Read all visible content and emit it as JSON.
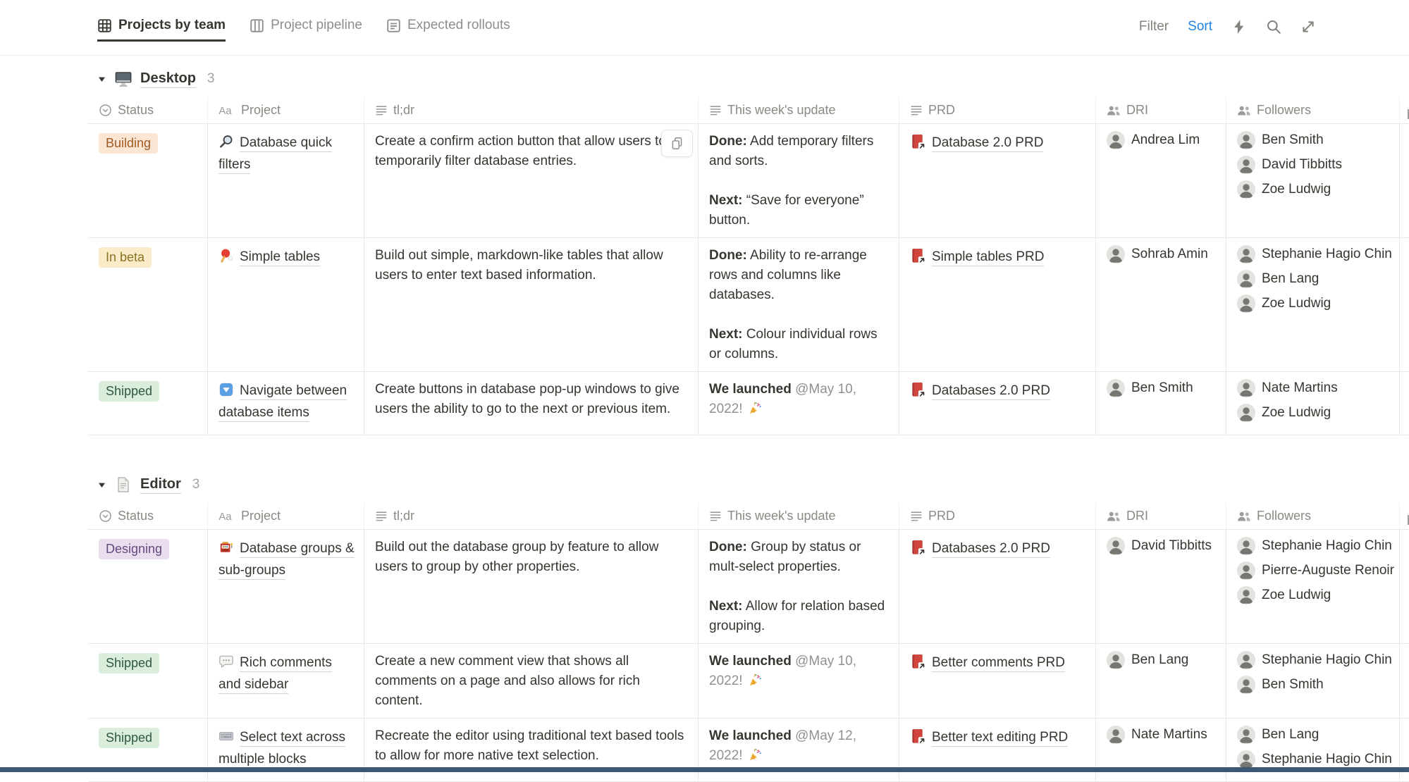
{
  "toolbar": {
    "filter_label": "Filter",
    "sort_label": "Sort",
    "sort_accent_color": "#2383E2",
    "icons": [
      "automation-bolt",
      "search",
      "expand"
    ]
  },
  "view_tabs": [
    {
      "label": "Projects by team",
      "icon": "table-view",
      "active": true
    },
    {
      "label": "Project pipeline",
      "icon": "board-view",
      "active": false
    },
    {
      "label": "Expected rollouts",
      "icon": "list-view",
      "active": false
    }
  ],
  "columns": [
    {
      "key": "status",
      "label": "Status",
      "icon": "status"
    },
    {
      "key": "project",
      "label": "Project",
      "icon": "aa-text"
    },
    {
      "key": "tldr",
      "label": "tl;dr",
      "icon": "text-lines"
    },
    {
      "key": "update",
      "label": "This week's update",
      "icon": "text-lines"
    },
    {
      "key": "prd",
      "label": "PRD",
      "icon": "text-lines"
    },
    {
      "key": "dri",
      "label": "DRI",
      "icon": "people"
    },
    {
      "key": "followers",
      "label": "Followers",
      "icon": "people"
    }
  ],
  "status_colors": {
    "Building": {
      "bg": "#FAE6D2",
      "text": "#9D5B25"
    },
    "In beta": {
      "bg": "#FBECC9",
      "text": "#8A7223"
    },
    "Shipped": {
      "bg": "#DBEDDB",
      "text": "#2F5943"
    },
    "Designing": {
      "bg": "#E8DEEE",
      "text": "#65487E"
    }
  },
  "right_edge_truncated_column": true,
  "groups": [
    {
      "name": "Desktop",
      "icon": "desktop-computer",
      "count": "3",
      "rows": [
        {
          "status": "Building",
          "project": {
            "icon": "magnifier",
            "title": "Database quick filters"
          },
          "tldr": "Create a confirm action button that allow users to temporarily filter database entries.",
          "hover_copy_button": true,
          "update": [
            [
              {
                "t": "Done:",
                "b": true
              },
              {
                "t": " Add temporary filters and sorts."
              }
            ],
            [
              {
                "t": "Next:",
                "b": true
              },
              {
                "t": " “Save for everyone” button."
              }
            ]
          ],
          "prd": "Database 2.0 PRD",
          "dri": [
            "Andrea Lim"
          ],
          "followers": [
            "Ben Smith",
            "David Tibbitts",
            "Zoe Ludwig"
          ]
        },
        {
          "status": "In beta",
          "project": {
            "icon": "ping-pong",
            "title": "Simple tables"
          },
          "tldr": "Build out simple, markdown-like tables that allow users to enter text based information.",
          "update": [
            [
              {
                "t": "Done:",
                "b": true
              },
              {
                "t": " Ability to re-arrange rows and columns like databases."
              }
            ],
            [
              {
                "t": "Next:",
                "b": true
              },
              {
                "t": " Colour individual rows or columns."
              }
            ]
          ],
          "prd": "Simple tables PRD",
          "dri": [
            "Sohrab Amin"
          ],
          "followers": [
            "Stephanie Hagio Chin",
            "Ben Lang",
            "Zoe Ludwig"
          ]
        },
        {
          "status": "Shipped",
          "project": {
            "icon": "down-button",
            "title": "Navigate between database items"
          },
          "tldr": "Create buttons in database pop-up windows to give users the ability to go to the next or previous item.",
          "update": [
            [
              {
                "t": "We launched",
                "b": true
              },
              {
                "t": " "
              },
              {
                "t": "@May 10, 2022!",
                "m": true
              },
              {
                "t": " "
              },
              {
                "icon": "party-popper"
              }
            ]
          ],
          "prd": "Databases 2.0 PRD",
          "dri": [
            "Ben Smith"
          ],
          "followers": [
            "Nate Martins",
            "Zoe Ludwig"
          ]
        }
      ]
    },
    {
      "name": "Editor",
      "icon": "page",
      "count": "3",
      "rows": [
        {
          "status": "Designing",
          "project": {
            "icon": "slot-machine",
            "title": "Database groups & sub-groups"
          },
          "tldr": "Build out the database group by feature to allow users to group by other properties.",
          "update": [
            [
              {
                "t": "Done:",
                "b": true
              },
              {
                "t": " Group by status or mult-select properties."
              }
            ],
            [
              {
                "t": "Next:",
                "b": true
              },
              {
                "t": " Allow for relation based grouping."
              }
            ]
          ],
          "prd": "Databases 2.0 PRD",
          "dri": [
            "David Tibbitts"
          ],
          "followers": [
            "Stephanie Hagio Chin",
            "Pierre-Auguste Renoir",
            "Zoe Ludwig"
          ]
        },
        {
          "status": "Shipped",
          "project": {
            "icon": "speech-bubble",
            "title": "Rich comments and sidebar"
          },
          "tldr": "Create a new comment view that shows all comments on a page and also allows for rich content.",
          "update": [
            [
              {
                "t": "We launched",
                "b": true
              },
              {
                "t": " "
              },
              {
                "t": "@May 10, 2022!",
                "m": true
              },
              {
                "t": " "
              },
              {
                "icon": "party-popper"
              }
            ]
          ],
          "prd": "Better comments PRD",
          "dri": [
            "Ben Lang"
          ],
          "followers": [
            "Stephanie Hagio Chin",
            "Ben Smith"
          ]
        },
        {
          "status": "Shipped",
          "project": {
            "icon": "keyboard",
            "title": "Select text across multiple blocks"
          },
          "tldr": "Recreate the editor using traditional text based tools to allow for more native text selection.",
          "update": [
            [
              {
                "t": "We launched",
                "b": true
              },
              {
                "t": " "
              },
              {
                "t": "@May 12, 2022!",
                "m": true
              },
              {
                "t": " "
              },
              {
                "icon": "party-popper"
              }
            ]
          ],
          "prd": "Better text editing PRD",
          "dri": [
            "Nate Martins"
          ],
          "followers": [
            "Ben Lang",
            "Stephanie Hagio Chin"
          ]
        }
      ]
    }
  ]
}
